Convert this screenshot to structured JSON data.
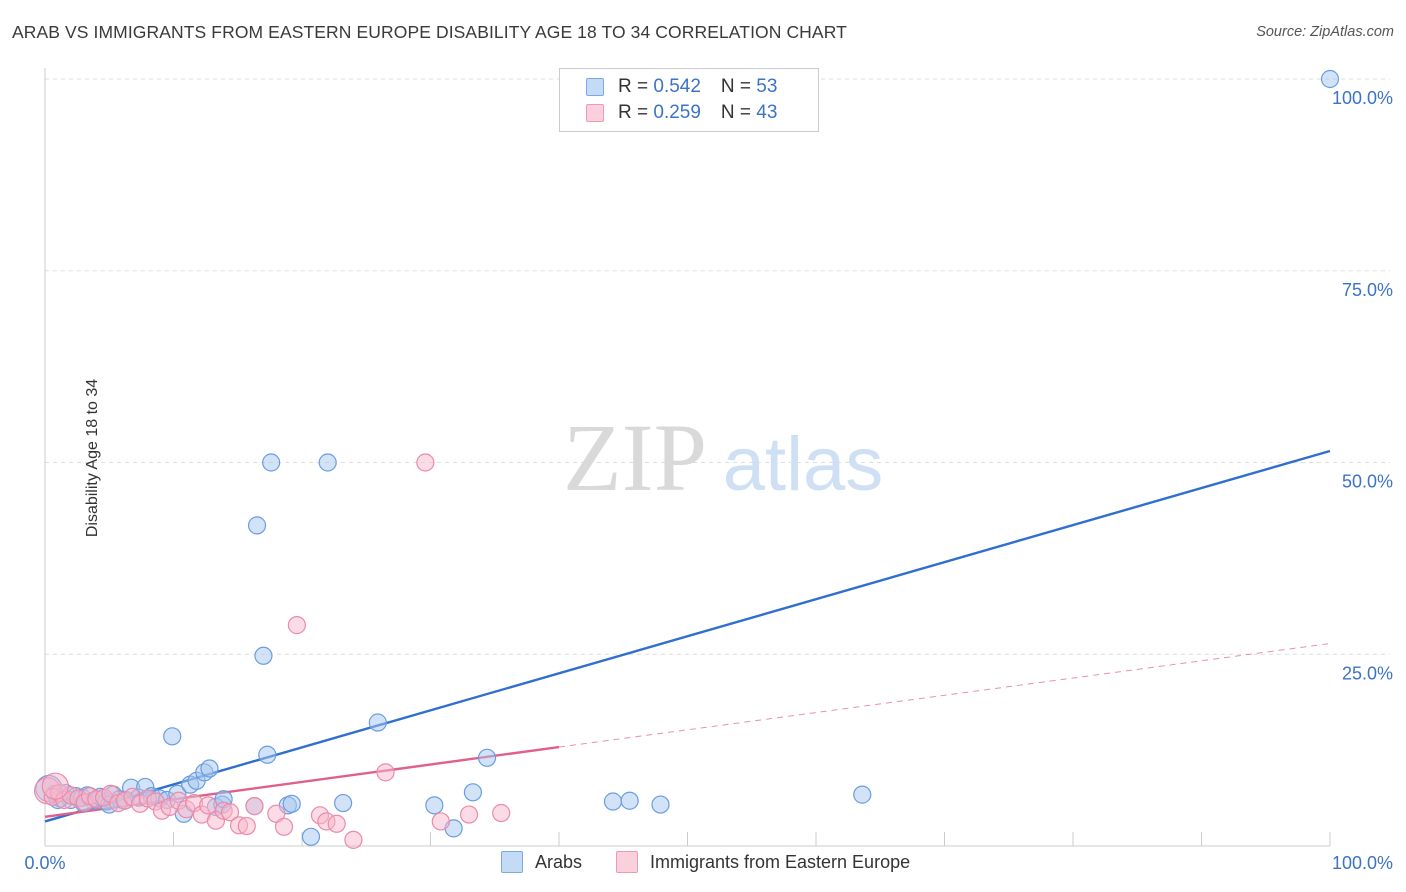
{
  "title": "ARAB VS IMMIGRANTS FROM EASTERN EUROPE DISABILITY AGE 18 TO 34 CORRELATION CHART",
  "source": "Source: ZipAtlas.com",
  "watermark": {
    "part1": "ZIP",
    "part2": "atlas"
  },
  "legend": {
    "rows": [
      {
        "r_label": "R = ",
        "r_value": "0.542",
        "n_label": "N = ",
        "n_value": "53",
        "color": "#a8c8f0"
      },
      {
        "r_label": "R = ",
        "r_value": "0.259",
        "n_label": "N = ",
        "n_value": "43",
        "color": "#f7b8cb"
      }
    ]
  },
  "chart_data": {
    "type": "scatter",
    "title": "ARAB VS IMMIGRANTS FROM EASTERN EUROPE DISABILITY AGE 18 TO 34 CORRELATION CHART",
    "xlabel": "",
    "ylabel": "Disability Age 18 to 34",
    "xlim": [
      0,
      100
    ],
    "ylim": [
      0,
      100
    ],
    "x_tick_labels": [
      "0.0%",
      "100.0%"
    ],
    "y_tick_labels": [
      "100.0%",
      "75.0%",
      "50.0%",
      "25.0%"
    ],
    "y_ticks": [
      100,
      75,
      50,
      25
    ],
    "legend_position": "top-center",
    "series": [
      {
        "name": "Arabs",
        "color": "#a8c8f0",
        "stroke": "#6a9de0",
        "trend_color": "#2f6fcf",
        "trend": {
          "x0": 0,
          "y0": 3.2,
          "x1": 100,
          "y1": 51.5
        },
        "points": [
          [
            0.3,
            7.5
          ],
          [
            0.8,
            6.8
          ],
          [
            1.2,
            6.2
          ],
          [
            1.6,
            6.9
          ],
          [
            2.0,
            6.0
          ],
          [
            2.4,
            6.5
          ],
          [
            2.9,
            6.3
          ],
          [
            3.3,
            6.6
          ],
          [
            3.8,
            5.9
          ],
          [
            4.3,
            6.4
          ],
          [
            4.8,
            5.8
          ],
          [
            5.3,
            6.7
          ],
          [
            5.8,
            6.1
          ],
          [
            6.3,
            6.0
          ],
          [
            6.7,
            7.6
          ],
          [
            7.3,
            6.3
          ],
          [
            7.8,
            7.7
          ],
          [
            8.3,
            6.5
          ],
          [
            8.9,
            6.2
          ],
          [
            9.5,
            6.0
          ],
          [
            9.9,
            14.3
          ],
          [
            10.3,
            6.8
          ],
          [
            10.8,
            4.2
          ],
          [
            11.3,
            8.0
          ],
          [
            11.8,
            8.5
          ],
          [
            12.4,
            9.6
          ],
          [
            12.8,
            10.1
          ],
          [
            13.3,
            5.1
          ],
          [
            13.8,
            5.4
          ],
          [
            13.9,
            6.1
          ],
          [
            16.3,
            5.2
          ],
          [
            16.5,
            41.8
          ],
          [
            17.0,
            24.8
          ],
          [
            17.3,
            11.9
          ],
          [
            17.6,
            50.0
          ],
          [
            18.9,
            5.3
          ],
          [
            19.2,
            5.5
          ],
          [
            20.7,
            1.2
          ],
          [
            22.0,
            50.0
          ],
          [
            23.2,
            5.6
          ],
          [
            25.9,
            16.1
          ],
          [
            30.3,
            5.3
          ],
          [
            31.8,
            2.3
          ],
          [
            33.3,
            7.0
          ],
          [
            34.4,
            11.5
          ],
          [
            44.2,
            5.8
          ],
          [
            45.5,
            5.9
          ],
          [
            47.9,
            5.4
          ],
          [
            63.6,
            6.7
          ],
          [
            100,
            100.0
          ],
          [
            1.0,
            6.0
          ],
          [
            3.0,
            5.6
          ],
          [
            5.0,
            5.4
          ]
        ]
      },
      {
        "name": "Immigrants from Eastern Europe",
        "color": "#f7b8cb",
        "stroke": "#ec8aa8",
        "trend_color": "#e0608a",
        "trend": {
          "x0": 0,
          "y0": 3.8,
          "x1": 40,
          "y1": 12.9
        },
        "trend_ext": {
          "x0": 40,
          "y0": 12.9,
          "x1": 100,
          "y1": 26.4
        },
        "points": [
          [
            0.2,
            7.2
          ],
          [
            0.6,
            6.4
          ],
          [
            1.1,
            6.9
          ],
          [
            1.5,
            6.0
          ],
          [
            2.0,
            6.6
          ],
          [
            2.6,
            6.2
          ],
          [
            3.1,
            5.7
          ],
          [
            3.5,
            6.5
          ],
          [
            4.0,
            6.1
          ],
          [
            4.6,
            6.3
          ],
          [
            5.1,
            6.8
          ],
          [
            5.7,
            5.6
          ],
          [
            6.2,
            5.9
          ],
          [
            6.8,
            6.4
          ],
          [
            7.4,
            5.5
          ],
          [
            8.0,
            6.2
          ],
          [
            8.6,
            5.8
          ],
          [
            9.1,
            4.6
          ],
          [
            9.7,
            5.1
          ],
          [
            10.4,
            5.9
          ],
          [
            11.0,
            4.8
          ],
          [
            11.6,
            5.6
          ],
          [
            12.2,
            4.1
          ],
          [
            12.7,
            5.3
          ],
          [
            13.3,
            3.3
          ],
          [
            13.9,
            4.6
          ],
          [
            14.4,
            4.4
          ],
          [
            15.1,
            2.7
          ],
          [
            15.7,
            2.6
          ],
          [
            16.3,
            5.2
          ],
          [
            18.0,
            4.2
          ],
          [
            18.6,
            2.5
          ],
          [
            19.6,
            28.8
          ],
          [
            21.4,
            4.0
          ],
          [
            21.9,
            3.2
          ],
          [
            22.7,
            2.9
          ],
          [
            24.0,
            0.8
          ],
          [
            26.5,
            9.6
          ],
          [
            29.6,
            50.0
          ],
          [
            30.8,
            3.2
          ],
          [
            33.0,
            4.1
          ],
          [
            35.5,
            4.3
          ],
          [
            0.8,
            7.8
          ]
        ]
      }
    ]
  },
  "bottom_legend": [
    {
      "label": "Arabs",
      "color": "#a8c8f0"
    },
    {
      "label": "Immigrants from Eastern Europe",
      "color": "#f7b8cb"
    }
  ]
}
